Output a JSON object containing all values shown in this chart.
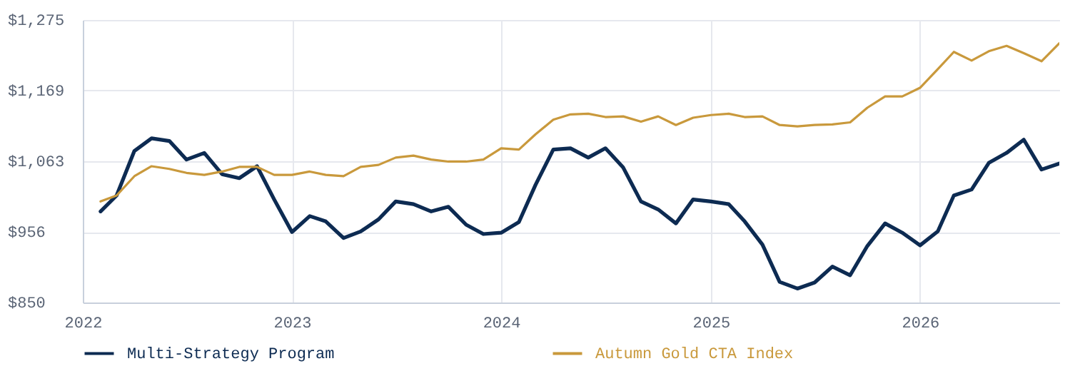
{
  "chart_data": {
    "type": "line",
    "x": [
      "2022-02",
      "2022-03",
      "2022-04",
      "2022-05",
      "2022-06",
      "2022-07",
      "2022-08",
      "2022-09",
      "2022-10",
      "2022-11",
      "2022-12",
      "2023-01",
      "2023-02",
      "2023-03",
      "2023-04",
      "2023-05",
      "2023-06",
      "2023-07",
      "2023-08",
      "2023-09",
      "2023-10",
      "2023-11",
      "2023-12",
      "2024-01",
      "2024-02",
      "2024-03",
      "2024-04",
      "2024-05",
      "2024-06",
      "2024-07",
      "2024-08",
      "2024-09",
      "2024-10",
      "2024-11",
      "2024-12",
      "2025-01",
      "2025-02",
      "2025-03",
      "2025-04",
      "2025-05",
      "2025-06",
      "2025-07",
      "2025-08",
      "2025-09",
      "2025-10",
      "2025-11",
      "2025-12",
      "2026-01",
      "2026-02",
      "2026-03",
      "2026-04",
      "2026-05",
      "2026-06",
      "2026-07",
      "2026-08",
      "2026-09"
    ],
    "series": [
      {
        "name": "Multi-Strategy Program",
        "color": "#0d2b52",
        "values": [
          987,
          1011,
          1078,
          1097,
          1093,
          1065,
          1075,
          1043,
          1037,
          1055,
          1005,
          956,
          980,
          972,
          947,
          957,
          975,
          1002,
          998,
          987,
          994,
          967,
          953,
          955,
          971,
          1027,
          1080,
          1082,
          1068,
          1082,
          1053,
          1002,
          990,
          969,
          1005,
          1002,
          998,
          972,
          937,
          881,
          871,
          880,
          904,
          891,
          935,
          969,
          955,
          936,
          957,
          1011,
          1020,
          1060,
          1075,
          1095,
          1050,
          1059
        ]
      },
      {
        "name": "Autumn Gold CTA Index",
        "color": "#c9993c",
        "values": [
          1002,
          1011,
          1040,
          1055,
          1051,
          1045,
          1042,
          1047,
          1054,
          1054,
          1042,
          1042,
          1047,
          1042,
          1040,
          1054,
          1057,
          1068,
          1071,
          1065,
          1062,
          1062,
          1065,
          1082,
          1080,
          1103,
          1125,
          1133,
          1134,
          1129,
          1130,
          1122,
          1130,
          1117,
          1128,
          1132,
          1134,
          1129,
          1130,
          1117,
          1115,
          1117,
          1118,
          1121,
          1143,
          1160,
          1160,
          1173,
          1201,
          1227,
          1214,
          1228,
          1236,
          1225,
          1213,
          1240
        ]
      }
    ],
    "xlim": [
      "2022-01",
      "2026-09"
    ],
    "xticks": [
      {
        "value": "2022",
        "label": "2022"
      },
      {
        "value": "2023",
        "label": "2023"
      },
      {
        "value": "2024",
        "label": "2024"
      },
      {
        "value": "2025",
        "label": "2025"
      },
      {
        "value": "2026",
        "label": "2026"
      }
    ],
    "ylim": [
      850,
      1275
    ],
    "yticks": [
      {
        "value": 850,
        "label": "$850"
      },
      {
        "value": 956,
        "label": "$956"
      },
      {
        "value": 1063,
        "label": "$1,063"
      },
      {
        "value": 1169,
        "label": "$1,169"
      },
      {
        "value": 1275,
        "label": "$1,275"
      }
    ],
    "grid": true,
    "legend": "bottom left",
    "marker": "none",
    "line_style": "solid"
  }
}
